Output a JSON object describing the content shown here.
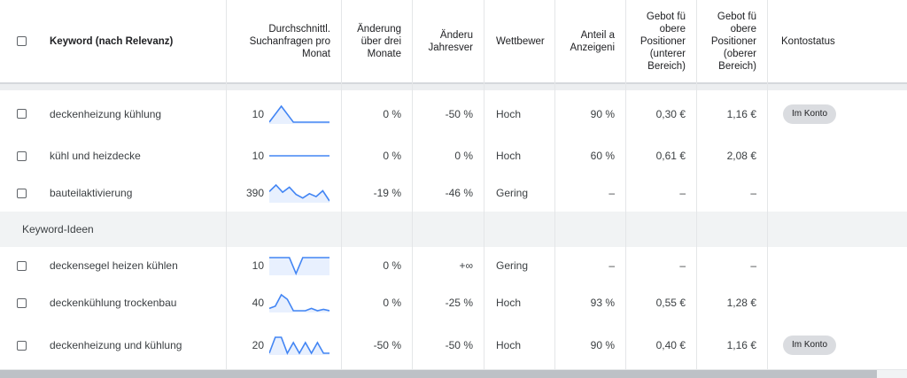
{
  "header": {
    "select_all": "",
    "keyword": "Keyword (nach Relevanz)",
    "avg_searches": "Durchschnittl.\nSuchanfragen pro\nMonat",
    "change_3m": "Änderung\nüber drei\nMonate",
    "change_yoy": "Änderu\nJahresver",
    "competition": "Wettbewer",
    "impression_share": "Anteil a\nAnzeigeni",
    "bid_low": "Gebot fü\nobere\nPositioner\n(unterer\nBereich)",
    "bid_high": "Gebot fü\nobere\nPositioner\n(oberer\nBereich)",
    "account_status": "Kontostatus"
  },
  "group_label": "Keyword-Ideen",
  "rows_account": [
    {
      "keyword": "deckenheizung kühlung",
      "searches": "10",
      "chg3": "0 %",
      "chgyoy": "-50 %",
      "competition": "Hoch",
      "share": "90 %",
      "bid_low": "0,30 €",
      "bid_high": "1,16 €",
      "status": "Im Konto",
      "trend": [
        10,
        15,
        10,
        10,
        10,
        10
      ]
    },
    {
      "keyword": "kühl und heizdecke",
      "searches": "10",
      "chg3": "0 %",
      "chgyoy": "0 %",
      "competition": "Hoch",
      "share": "60 %",
      "bid_low": "0,61 €",
      "bid_high": "2,08 €",
      "status": "",
      "trend": [
        10,
        10,
        10,
        10,
        10,
        10
      ]
    },
    {
      "keyword": "bauteilaktivierung",
      "searches": "390",
      "chg3": "-19 %",
      "chgyoy": "-46 %",
      "competition": "Gering",
      "share": "–",
      "bid_low": "–",
      "bid_high": "–",
      "status": "",
      "trend": [
        390,
        480,
        380,
        450,
        350,
        300,
        360,
        320,
        400,
        260
      ]
    }
  ],
  "rows_ideas": [
    {
      "keyword": "deckensegel heizen kühlen",
      "searches": "10",
      "chg3": "0 %",
      "chgyoy": "+∞",
      "competition": "Gering",
      "share": "–",
      "bid_low": "–",
      "bid_high": "–",
      "status": "",
      "trend": [
        10,
        10,
        10,
        10,
        0,
        10,
        10,
        10,
        10,
        10
      ]
    },
    {
      "keyword": "deckenkühlung trockenbau",
      "searches": "40",
      "chg3": "0 %",
      "chgyoy": "-25 %",
      "competition": "Hoch",
      "share": "93 %",
      "bid_low": "0,55 €",
      "bid_high": "1,28 €",
      "status": "",
      "trend": [
        40,
        45,
        70,
        60,
        35,
        35,
        35,
        40,
        35,
        38,
        35
      ]
    },
    {
      "keyword": "deckenheizung und kühlung",
      "searches": "20",
      "chg3": "-50 %",
      "chgyoy": "-50 %",
      "competition": "Hoch",
      "share": "90 %",
      "bid_low": "0,40 €",
      "bid_high": "1,16 €",
      "status": "Im Konto",
      "trend": [
        10,
        25,
        25,
        10,
        20,
        10,
        20,
        10,
        20,
        10,
        10
      ]
    }
  ],
  "colors": {
    "spark_line": "#4285f4",
    "spark_fill": "#e8f0fe",
    "badge": "#dadce0"
  }
}
